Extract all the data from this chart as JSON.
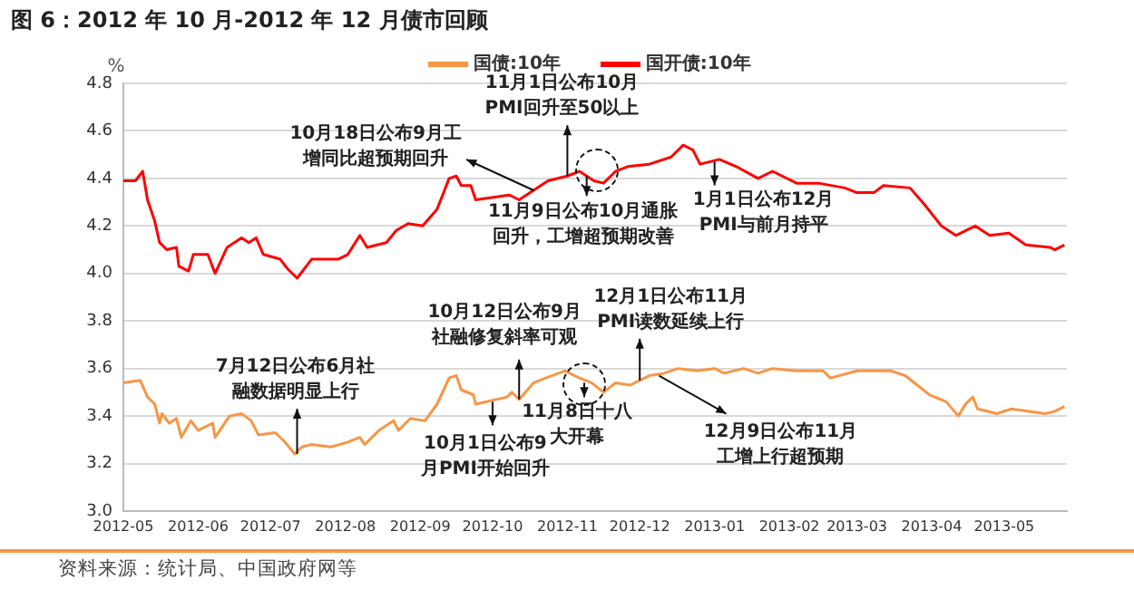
{
  "chart_data": {
    "type": "line",
    "title": "图 6：2012 年 10 月-2012 年 12 月债市回顾",
    "ylabel": "%",
    "legend": "top",
    "grid": "y",
    "marker": "none",
    "line_style": "solid",
    "xlim": [
      "2012-05-01",
      "2013-05-27"
    ],
    "xticks": [
      "2012-05",
      "2012-06",
      "2012-07",
      "2012-08",
      "2012-09",
      "2012-10",
      "2012-11",
      "2012-12",
      "2013-01",
      "2013-02",
      "2013-03",
      "2013-04",
      "2013-05"
    ],
    "ylim": [
      3.0,
      4.8
    ],
    "yticks": [
      {
        "value": 3,
        "label": "3.0"
      },
      3.2,
      3.4,
      3.6,
      3.8,
      {
        "value": 4,
        "label": "4.0"
      },
      4.2,
      4.4,
      4.6,
      4.8
    ],
    "series": [
      {
        "name": "国债:10年",
        "color": "#f79646",
        "x": [
          "2012-05-01",
          "2012-05-08",
          "2012-05-11",
          "2012-05-14",
          "2012-05-16",
          "2012-05-17",
          "2012-05-20",
          "2012-05-23",
          "2012-05-25",
          "2012-05-29",
          "2012-06-01",
          "2012-06-07",
          "2012-06-08",
          "2012-06-14",
          "2012-06-19",
          "2012-06-23",
          "2012-06-26",
          "2012-07-03",
          "2012-07-07",
          "2012-07-11",
          "2012-07-14",
          "2012-07-18",
          "2012-07-26",
          "2012-08-02",
          "2012-08-07",
          "2012-08-09",
          "2012-08-15",
          "2012-08-21",
          "2012-08-23",
          "2012-08-28",
          "2012-09-03",
          "2012-09-08",
          "2012-09-13",
          "2012-09-16",
          "2012-09-18",
          "2012-09-23",
          "2012-09-24",
          "2012-10-07",
          "2012-10-09",
          "2012-10-12",
          "2012-10-18",
          "2012-10-23",
          "2012-10-31",
          "2012-11-06",
          "2012-11-11",
          "2012-11-16",
          "2012-11-21",
          "2012-11-27",
          "2012-12-05",
          "2012-12-11",
          "2012-12-17",
          "2012-12-25",
          "2013-01-01",
          "2013-01-05",
          "2013-01-13",
          "2013-01-19",
          "2013-01-25",
          "2013-02-04",
          "2013-02-15",
          "2013-02-18",
          "2013-03-01",
          "2013-03-15",
          "2013-03-21",
          "2013-03-31",
          "2013-04-07",
          "2013-04-12",
          "2013-04-15",
          "2013-04-18",
          "2013-04-20",
          "2013-04-28",
          "2013-05-04",
          "2013-05-18",
          "2013-05-22",
          "2013-05-26"
        ],
        "values": [
          3.54,
          3.55,
          3.48,
          3.45,
          3.37,
          3.41,
          3.37,
          3.39,
          3.31,
          3.38,
          3.34,
          3.37,
          3.31,
          3.4,
          3.41,
          3.38,
          3.32,
          3.33,
          3.29,
          3.24,
          3.27,
          3.28,
          3.27,
          3.29,
          3.31,
          3.28,
          3.34,
          3.38,
          3.34,
          3.39,
          3.38,
          3.45,
          3.56,
          3.57,
          3.51,
          3.49,
          3.45,
          3.48,
          3.5,
          3.47,
          3.54,
          3.56,
          3.59,
          3.56,
          3.54,
          3.5,
          3.54,
          3.53,
          3.57,
          3.58,
          3.6,
          3.59,
          3.6,
          3.58,
          3.6,
          3.58,
          3.6,
          3.59,
          3.59,
          3.56,
          3.59,
          3.59,
          3.57,
          3.49,
          3.46,
          3.4,
          3.45,
          3.48,
          3.43,
          3.41,
          3.43,
          3.41,
          3.42,
          3.44
        ]
      },
      {
        "name": "国开债:10年",
        "color": "#ff0000",
        "x": [
          "2012-05-01",
          "2012-05-06",
          "2012-05-09",
          "2012-05-11",
          "2012-05-14",
          "2012-05-16",
          "2012-05-19",
          "2012-05-23",
          "2012-05-24",
          "2012-05-28",
          "2012-05-30",
          "2012-06-05",
          "2012-06-08",
          "2012-06-13",
          "2012-06-19",
          "2012-06-22",
          "2012-06-25",
          "2012-06-28",
          "2012-07-05",
          "2012-07-08",
          "2012-07-12",
          "2012-07-18",
          "2012-07-29",
          "2012-08-02",
          "2012-08-07",
          "2012-08-10",
          "2012-08-18",
          "2012-08-22",
          "2012-08-27",
          "2012-09-02",
          "2012-09-08",
          "2012-09-13",
          "2012-09-16",
          "2012-09-18",
          "2012-09-22",
          "2012-09-24",
          "2012-10-08",
          "2012-10-12",
          "2012-10-18",
          "2012-10-24",
          "2012-11-01",
          "2012-11-06",
          "2012-11-12",
          "2012-11-16",
          "2012-11-21",
          "2012-11-26",
          "2012-12-05",
          "2012-12-14",
          "2012-12-19",
          "2012-12-23",
          "2012-12-26",
          "2013-01-03",
          "2013-01-10",
          "2013-01-19",
          "2013-01-25",
          "2013-02-04",
          "2013-02-13",
          "2013-02-24",
          "2013-03-01",
          "2013-03-08",
          "2013-03-12",
          "2013-03-23",
          "2013-03-29",
          "2013-04-05",
          "2013-04-11",
          "2013-04-19",
          "2013-04-25",
          "2013-05-03",
          "2013-05-10",
          "2013-05-20",
          "2013-05-22",
          "2013-05-26"
        ],
        "values": [
          4.39,
          4.39,
          4.43,
          4.31,
          4.22,
          4.13,
          4.1,
          4.11,
          4.03,
          4.01,
          4.08,
          4.08,
          4.0,
          4.11,
          4.15,
          4.13,
          4.15,
          4.08,
          4.06,
          4.02,
          3.98,
          4.06,
          4.06,
          4.08,
          4.16,
          4.11,
          4.13,
          4.18,
          4.21,
          4.2,
          4.27,
          4.4,
          4.41,
          4.37,
          4.37,
          4.31,
          4.33,
          4.31,
          4.35,
          4.39,
          4.41,
          4.43,
          4.39,
          4.38,
          4.43,
          4.45,
          4.46,
          4.49,
          4.54,
          4.52,
          4.46,
          4.48,
          4.45,
          4.4,
          4.43,
          4.38,
          4.38,
          4.36,
          4.34,
          4.34,
          4.37,
          4.36,
          4.29,
          4.2,
          4.16,
          4.2,
          4.16,
          4.17,
          4.12,
          4.11,
          4.1,
          4.12
        ]
      }
    ],
    "annotations": [
      {
        "text": "10月18日公布9月工增同比超预期回升",
        "x": "2012-10-18",
        "y": 4.35
      },
      {
        "text": "11月1日公布10月PMI回升至50以上",
        "x": "2012-11-01",
        "y": 4.41
      },
      {
        "text": "11月9日公布10月通胀回升，工增超预期改善",
        "x": "2012-11-09",
        "y": 4.41
      },
      {
        "text": "1月1日公布12月PMI与前月持平",
        "x": "2013-01-01",
        "y": 4.47
      },
      {
        "text": "7月12日公布6月社融数据明显上行",
        "x": "2012-07-12",
        "y": 3.24
      },
      {
        "text": "10月12日公布9月社融修复斜率可观",
        "x": "2012-10-12",
        "y": 3.47
      },
      {
        "text": "10月1日公布9月PMI开始回升",
        "x": "2012-10-01",
        "y": 3.46
      },
      {
        "text": "11月8日十八大开幕",
        "x": "2012-11-08",
        "y": 3.54
      },
      {
        "text": "12月1日公布11月PMI读数延续上行",
        "x": "2012-12-01",
        "y": 3.55
      },
      {
        "text": "12月9日公布11月工增上行超预期",
        "x": "2012-12-09",
        "y": 3.57
      },
      "资料来源：统计局、中国政府网等"
    ]
  }
}
